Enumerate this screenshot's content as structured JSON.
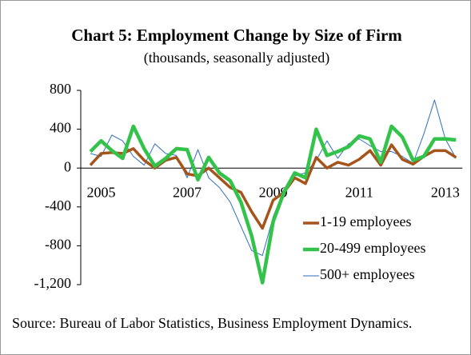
{
  "chart_data": {
    "type": "line",
    "title": "Chart 5: Employment Change by Size of Firm",
    "subtitle": "(thousands, seasonally adjusted)",
    "source": "Source: Bureau of Labor Statistics, Business Employment Dynamics.",
    "categories": [
      null,
      "2005",
      null,
      null,
      null,
      null,
      null,
      null,
      null,
      "2007",
      null,
      null,
      null,
      null,
      null,
      null,
      null,
      "2009",
      null,
      null,
      null,
      null,
      null,
      null,
      null,
      "2011",
      null,
      null,
      null,
      null,
      null,
      null,
      null,
      "2013",
      null
    ],
    "series": [
      {
        "name": "1-19 employees",
        "color": "#a5541c",
        "values": [
          30,
          150,
          160,
          150,
          200,
          80,
          0,
          80,
          110,
          -60,
          -80,
          0,
          -100,
          -200,
          -250,
          -450,
          -620,
          -330,
          -250,
          -100,
          -160,
          110,
          0,
          60,
          30,
          90,
          180,
          30,
          240,
          90,
          40,
          120,
          180,
          180,
          110
        ]
      },
      {
        "name": "20-499 employees",
        "color": "#33c24a",
        "values": [
          170,
          280,
          180,
          100,
          430,
          200,
          20,
          100,
          200,
          190,
          -120,
          110,
          -50,
          -130,
          -350,
          -700,
          -1180,
          -550,
          -250,
          -50,
          -100,
          400,
          130,
          170,
          220,
          330,
          300,
          60,
          430,
          320,
          80,
          120,
          300,
          300,
          290
        ]
      },
      {
        "name": "500+ employees",
        "color": "#2e6ebf",
        "values": [
          150,
          120,
          340,
          280,
          120,
          30,
          250,
          150,
          130,
          -100,
          190,
          -100,
          -200,
          -350,
          -600,
          -850,
          -900,
          -500,
          -220,
          -80,
          -50,
          80,
          280,
          100,
          250,
          300,
          230,
          170,
          170,
          120,
          50,
          350,
          700,
          300,
          100
        ]
      }
    ],
    "ylim": [
      -1200,
      800
    ],
    "yticks": [
      800,
      400,
      0,
      -400,
      -800,
      {
        "value": -1200,
        "label": "-1,200"
      }
    ],
    "legend": "lower right"
  }
}
